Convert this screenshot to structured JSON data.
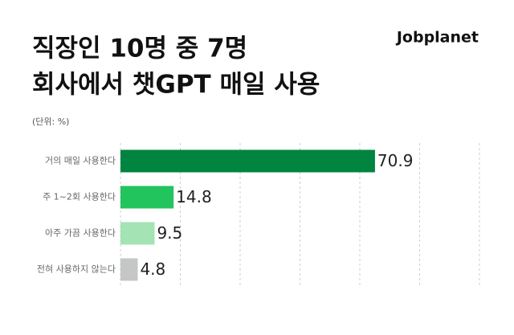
{
  "chart_data": {
    "type": "bar",
    "orientation": "horizontal",
    "title": [
      "직장인 10명 중 7명",
      "회사에서 챗GPT 매일 사용"
    ],
    "subtitle": "(단위: %)",
    "brand": "Jobplanet",
    "categories": [
      "거의 매일 사용한다",
      "주 1~2회 사용한다",
      "아주 가끔 사용한다",
      "전혀 사용하지 않는다"
    ],
    "values": [
      70.9,
      14.8,
      9.5,
      4.8
    ],
    "colors": [
      "#00843f",
      "#22c45e",
      "#a3e3b4",
      "#c4c7c6"
    ],
    "xlim": [
      0,
      100
    ],
    "grid": true
  }
}
